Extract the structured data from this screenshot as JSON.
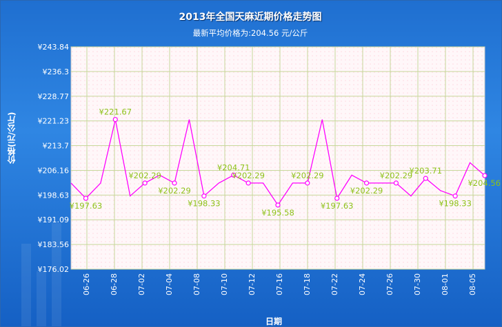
{
  "chart_data": {
    "type": "line",
    "title": "2013年全国天麻近期价格走势图",
    "subtitle": "最新平均价格为:204.56 元/公斤",
    "xlabel": "日期",
    "ylabel": "价格(元/公斤)",
    "currency_prefix": "¥",
    "ylim": [
      176.02,
      243.84
    ],
    "yticks": [
      "¥243.84",
      "¥236.3",
      "¥228.77",
      "¥221.23",
      "¥213.7",
      "¥206.16",
      "¥198.63",
      "¥191.09",
      "¥183.56",
      "¥176.02"
    ],
    "xticks": [
      "06-26",
      "06-28",
      "07-02",
      "07-04",
      "07-08",
      "07-10",
      "07-12",
      "07-16",
      "07-18",
      "07-22",
      "07-24",
      "07-26",
      "07-30",
      "08-01",
      "08-05"
    ],
    "grid": true,
    "line_color": "#ff00ff",
    "label_color": "#8ec21a",
    "series": [
      {
        "values": [
          202.29,
          197.63,
          202.29,
          221.67,
          198.33,
          202.29,
          204.71,
          202.29,
          221.67,
          198.33,
          202.29,
          204.71,
          202.29,
          202.29,
          195.58,
          202.29,
          202.29,
          221.67,
          197.63,
          204.71,
          202.29,
          202.29,
          202.29,
          198.33,
          203.71,
          200.0,
          198.33,
          208.5,
          204.56
        ]
      }
    ],
    "point_markers": [
      {
        "index": 1,
        "label": "¥197.63",
        "pos": "below"
      },
      {
        "index": 3,
        "label": "¥221.67",
        "pos": "above"
      },
      {
        "index": 5,
        "label": "¥202.29",
        "pos": "above"
      },
      {
        "index": 7,
        "label": "¥202.29",
        "pos": "below"
      },
      {
        "index": 9,
        "label": "¥198.33",
        "pos": "below"
      },
      {
        "index": 11,
        "label": "¥204.71",
        "pos": "above"
      },
      {
        "index": 12,
        "label": "¥202.29",
        "pos": "above"
      },
      {
        "index": 14,
        "label": "¥195.58",
        "pos": "below"
      },
      {
        "index": 16,
        "label": "¥202.29",
        "pos": "above"
      },
      {
        "index": 18,
        "label": "¥197.63",
        "pos": "below"
      },
      {
        "index": 20,
        "label": "¥202.29",
        "pos": "below"
      },
      {
        "index": 22,
        "label": "¥202.29",
        "pos": "above"
      },
      {
        "index": 24,
        "label": "¥203.71",
        "pos": "above"
      },
      {
        "index": 26,
        "label": "¥198.33",
        "pos": "below"
      },
      {
        "index": 28,
        "label": "¥204.56",
        "pos": "below"
      }
    ]
  }
}
